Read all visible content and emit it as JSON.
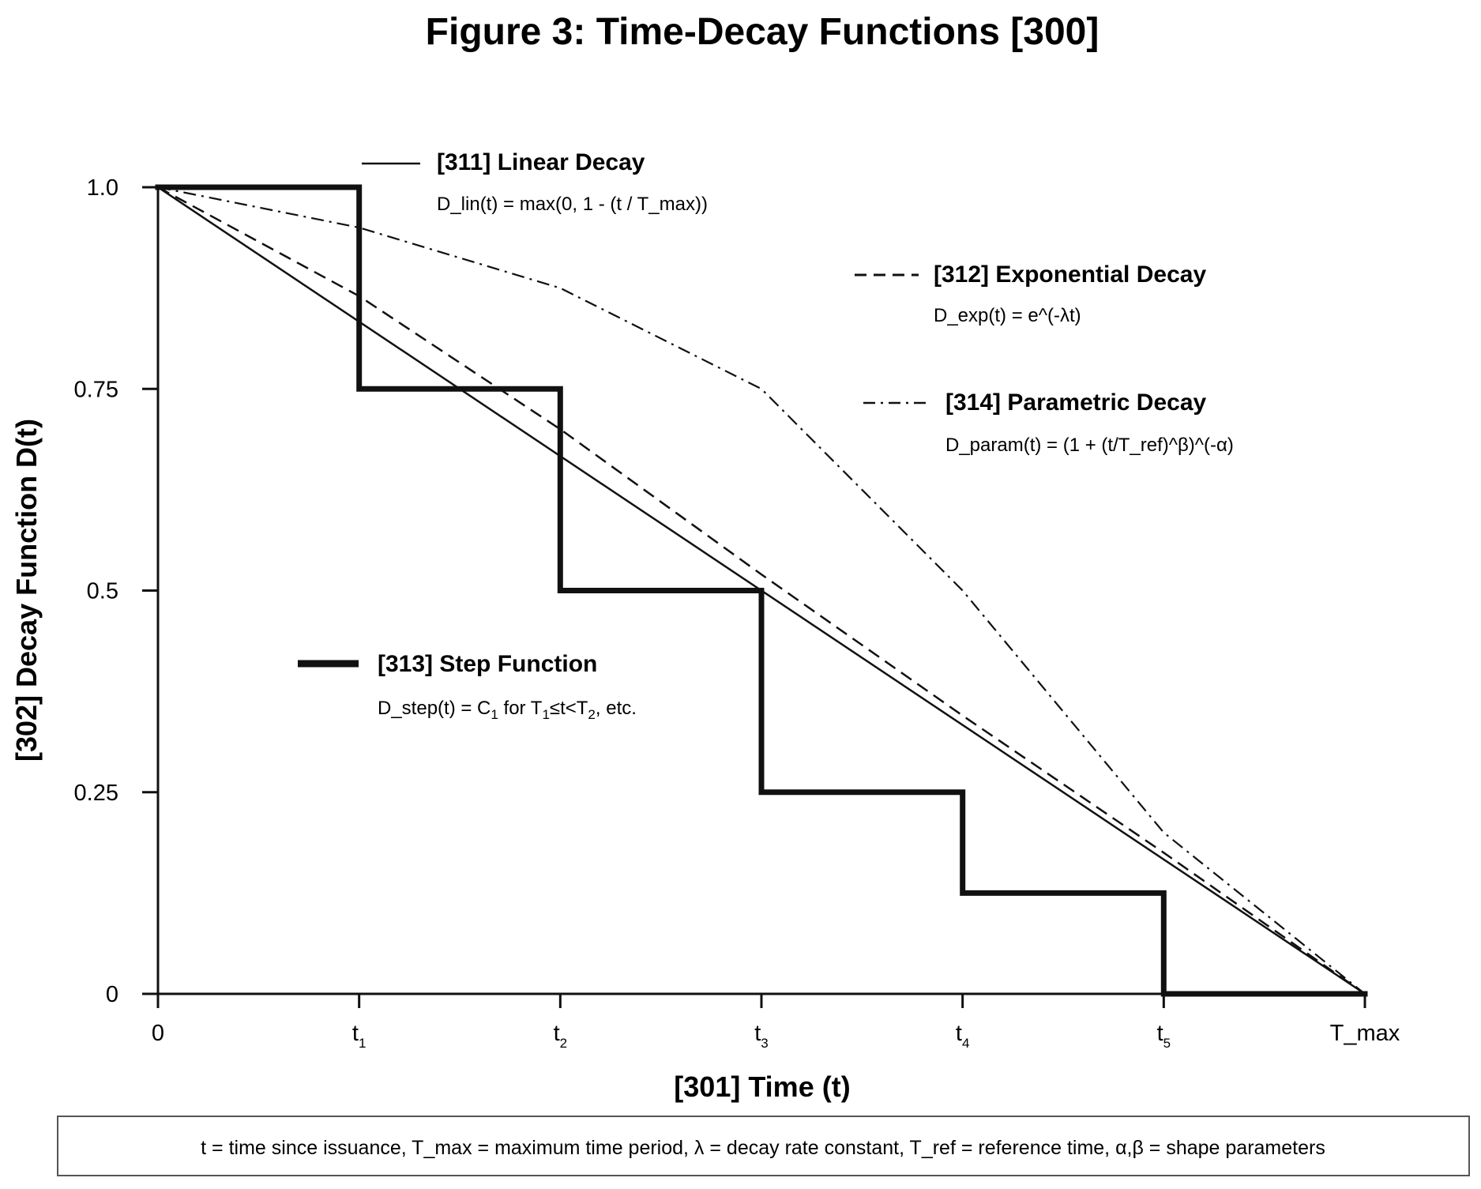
{
  "chart_data": {
    "type": "line",
    "title": "Figure 3: Time-Decay Functions [300]",
    "xlabel": "[301] Time (t)",
    "ylabel": "[302] Decay Function D(t)",
    "x_ticks": [
      {
        "main": "0",
        "sub": ""
      },
      {
        "main": "t",
        "sub": "1"
      },
      {
        "main": "t",
        "sub": "2"
      },
      {
        "main": "t",
        "sub": "3"
      },
      {
        "main": "t",
        "sub": "4"
      },
      {
        "main": "t",
        "sub": "5"
      },
      {
        "main": "T_max",
        "sub": ""
      }
    ],
    "y_ticks": [
      "0",
      "0.25",
      "0.5",
      "0.75",
      "1.0"
    ],
    "y_tick_values": [
      0,
      0.25,
      0.5,
      0.75,
      1.0
    ],
    "xlim": [
      0,
      6
    ],
    "ylim": [
      0,
      1
    ],
    "grid": false,
    "series": [
      {
        "key": "linear",
        "name": "[311] Linear Decay",
        "equation": "D_lin(t) = max(0, 1 - (t / T_max))",
        "style": "solid",
        "x": [
          0,
          6
        ],
        "y": [
          1.0,
          0.0
        ]
      },
      {
        "key": "exponential",
        "name": "[312] Exponential Decay",
        "equation": "D_exp(t) = e^(-λt)",
        "style": "dashed",
        "x": [
          0,
          1,
          2,
          3,
          4,
          5,
          6
        ],
        "y": [
          1.0,
          0.865,
          0.7,
          0.52,
          0.345,
          0.175,
          0.0
        ]
      },
      {
        "key": "step",
        "name": "[313] Step Function",
        "equation_parts": [
          "D_step(t) = C",
          "1",
          " for T",
          "1",
          "≤t<T",
          "2",
          ", etc."
        ],
        "style": "thick",
        "x": [
          0,
          1,
          1,
          2,
          2,
          3,
          3,
          4,
          4,
          5,
          5,
          6
        ],
        "y": [
          1.0,
          1.0,
          0.75,
          0.75,
          0.5,
          0.5,
          0.25,
          0.25,
          0.125,
          0.125,
          0.0,
          0.0
        ]
      },
      {
        "key": "parametric",
        "name": "[314] Parametric Decay",
        "equation": "D_param(t) = (1 + (t/T_ref)^β)^(-α)",
        "style": "dashdot",
        "x": [
          0,
          1,
          2,
          3,
          4,
          5,
          6
        ],
        "y": [
          1.0,
          0.95,
          0.875,
          0.75,
          0.5,
          0.2,
          0.0
        ]
      }
    ],
    "footnote": "t = time since issuance, T_max = maximum time period, λ = decay rate constant, T_ref = reference time, α,β = shape parameters"
  }
}
